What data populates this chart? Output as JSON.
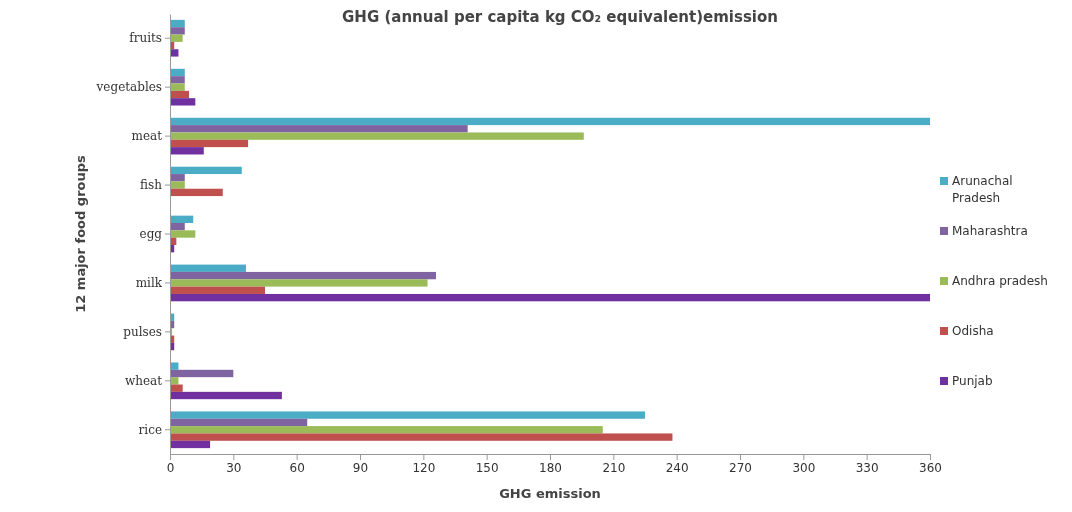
{
  "chart_data": {
    "type": "bar",
    "orientation": "horizontal",
    "title": "GHG (annual per capita kg CO₂ equivalent)emission",
    "xlabel": "GHG emission",
    "ylabel": "12 major food groups",
    "categories": [
      "fruits",
      "vegetables",
      "meat",
      "fish",
      "egg",
      "milk",
      "pulses",
      "wheat",
      "rice"
    ],
    "series": [
      {
        "name": "Arunachal Pradesh",
        "color": "#4bacc6",
        "values": [
          7,
          7,
          360,
          34,
          11,
          36,
          2,
          4,
          225
        ]
      },
      {
        "name": "Maharashtra",
        "color": "#8064a2",
        "values": [
          7,
          7,
          141,
          7,
          7,
          126,
          2,
          30,
          65
        ]
      },
      {
        "name": "Andhra pradesh",
        "color": "#9bbb59",
        "values": [
          6,
          7,
          196,
          7,
          12,
          122,
          1,
          4,
          205
        ]
      },
      {
        "name": "Odisha",
        "color": "#c0504d",
        "values": [
          2,
          9,
          37,
          25,
          3,
          45,
          2,
          6,
          238
        ]
      },
      {
        "name": "Punjab",
        "color": "#7030a0",
        "values": [
          4,
          12,
          16,
          0,
          2,
          360,
          2,
          53,
          19
        ]
      }
    ],
    "xlim": [
      0,
      360
    ],
    "xticks": [
      0,
      30,
      60,
      90,
      120,
      150,
      180,
      210,
      240,
      270,
      300,
      330,
      360
    ],
    "legend": "right",
    "grid": false
  }
}
